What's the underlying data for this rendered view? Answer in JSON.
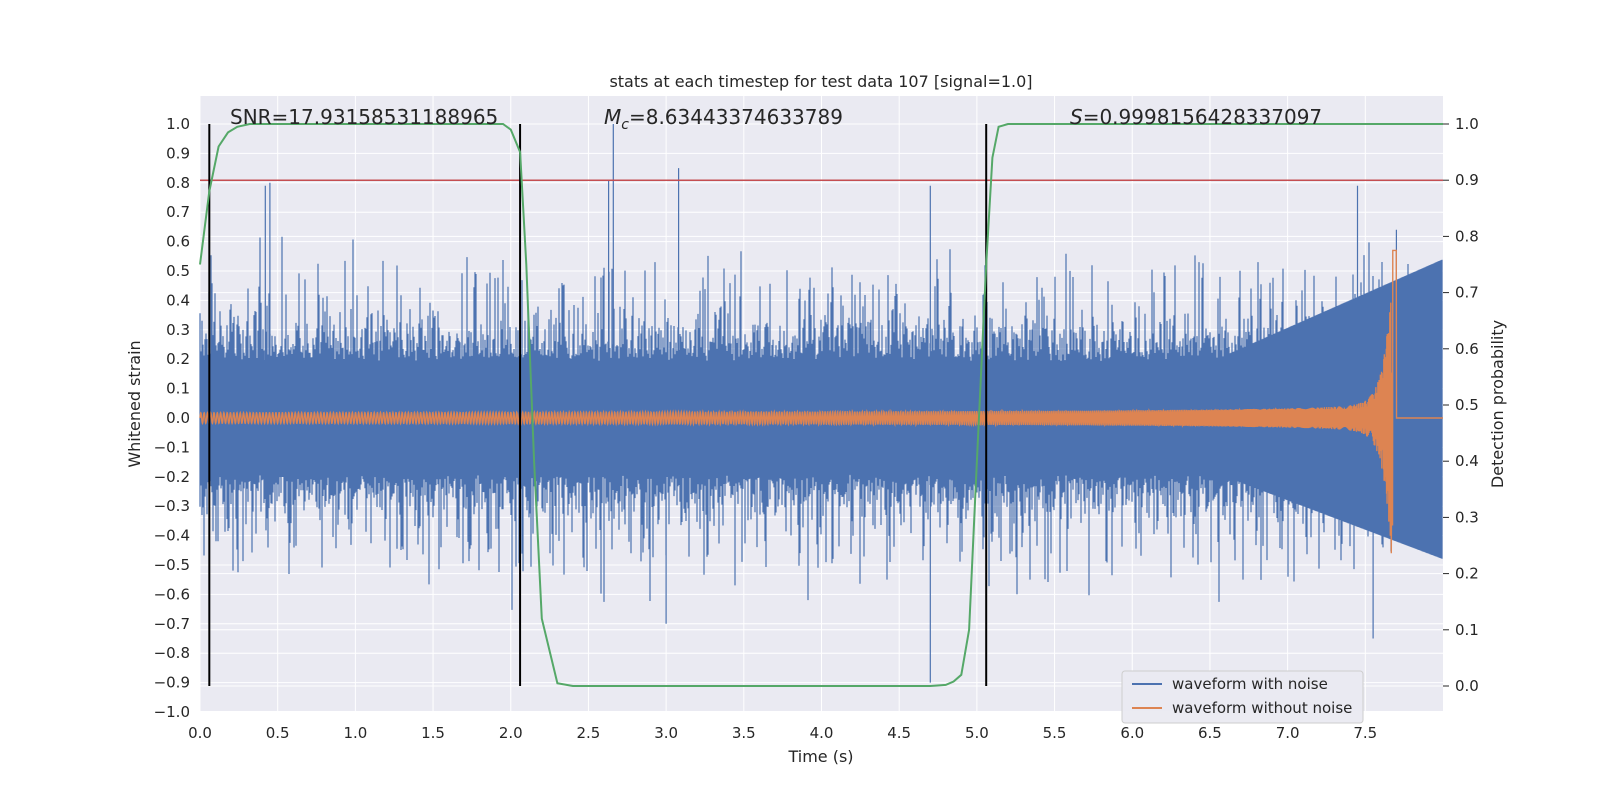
{
  "chart_data": {
    "type": "line",
    "title": "stats at each timestep for test data 107 [signal=1.0]",
    "xlabel": "Time (s)",
    "ylabel": "Whitened strain",
    "y2label": "Detection probability",
    "xlim": [
      0.0,
      8.0
    ],
    "ylim": [
      -1.0,
      1.0
    ],
    "y2lim": [
      -0.05,
      1.025
    ],
    "xticks": [
      "0.0",
      "0.5",
      "1.0",
      "1.5",
      "2.0",
      "2.5",
      "3.0",
      "3.5",
      "4.0",
      "4.5",
      "5.0",
      "5.5",
      "6.0",
      "6.5",
      "7.0",
      "7.5"
    ],
    "yticks": [
      "1.0",
      "0.9",
      "0.8",
      "0.7",
      "0.6",
      "0.5",
      "0.4",
      "0.3",
      "0.2",
      "0.1",
      "0.0",
      "−0.1",
      "−0.2",
      "−0.3",
      "−0.4",
      "−0.5",
      "−0.6",
      "−0.7",
      "−0.8",
      "−0.9",
      "−1.0"
    ],
    "y2ticks": [
      "1.0",
      "0.9",
      "0.8",
      "0.7",
      "0.6",
      "0.5",
      "0.4",
      "0.3",
      "0.2",
      "0.1",
      "0.0"
    ],
    "annotations": {
      "snr": "SNR=17.93158531188965",
      "mc_symbol": "M",
      "mc_sub": "c",
      "mc_value": "=8.63443374633789",
      "s_symbol": "S",
      "s_value": "=0.9998156428337097"
    },
    "threshold": {
      "value": 0.9,
      "axis": "right",
      "color": "#c44e52"
    },
    "event_markers_x": [
      0.06,
      2.06,
      5.06
    ],
    "series": [
      {
        "name": "waveform with noise",
        "color": "#4c72b0",
        "envelope": "noise",
        "typical_amplitude": 0.35,
        "max": 1.0,
        "min": -0.9
      },
      {
        "name": "waveform without noise",
        "color": "#dd8452",
        "envelope": "chirp",
        "merger_time": 7.68,
        "peak_amplitude": 0.57,
        "min_amplitude": -0.46
      },
      {
        "name": "detection probability",
        "color": "#55a868",
        "axis": "right",
        "x": [
          0.0,
          0.06,
          0.12,
          0.18,
          0.24,
          0.32,
          0.5,
          1.0,
          1.5,
          1.95,
          2.0,
          2.06,
          2.1,
          2.15,
          2.2,
          2.3,
          2.4,
          2.6,
          3.0,
          3.5,
          4.0,
          4.5,
          4.7,
          4.8,
          4.85,
          4.9,
          4.95,
          5.0,
          5.06,
          5.1,
          5.14,
          5.2,
          5.3,
          6.0,
          7.0,
          8.0
        ],
        "values": [
          0.75,
          0.88,
          0.96,
          0.985,
          0.995,
          1.0,
          1.0,
          1.0,
          1.0,
          1.0,
          0.99,
          0.95,
          0.75,
          0.4,
          0.12,
          0.005,
          0.0,
          0.0,
          0.0,
          0.0,
          0.0,
          0.0,
          0.0,
          0.002,
          0.008,
          0.02,
          0.1,
          0.4,
          0.75,
          0.94,
          0.995,
          1.0,
          1.0,
          1.0,
          1.0,
          1.0
        ]
      }
    ],
    "legend": {
      "position": "lower right",
      "entries": [
        "waveform with noise",
        "waveform without noise"
      ]
    }
  }
}
